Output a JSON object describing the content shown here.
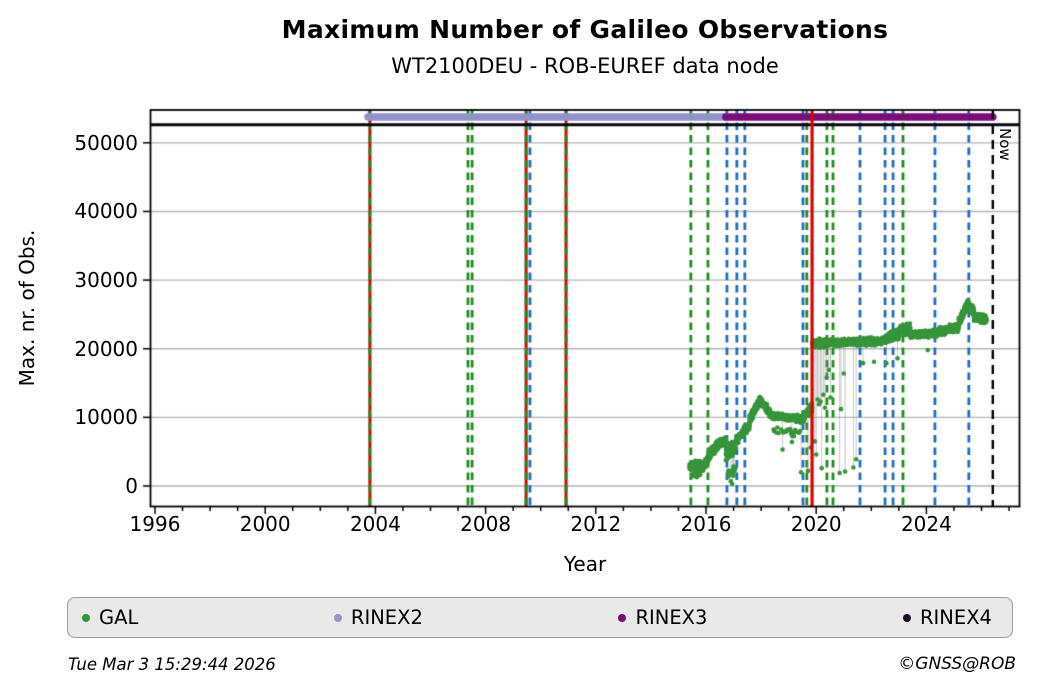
{
  "title": "Maximum Number of Galileo Observations",
  "subtitle": "WT2100DEU - ROB-EUREF data node",
  "footer": {
    "timestamp": "Tue Mar  3 15:29:44 2026",
    "credit": "©GNSS@ROB"
  },
  "legend": {
    "items": [
      {
        "id": "gal",
        "label": "GAL",
        "color": "#36943a"
      },
      {
        "id": "rinex2",
        "label": "RINEX2",
        "color": "#9393cb"
      },
      {
        "id": "rinex3",
        "label": "RINEX3",
        "color": "#790d79"
      },
      {
        "id": "rinex4",
        "label": "RINEX4",
        "color": "#1e0d28"
      }
    ]
  },
  "chart_data": {
    "type": "scatter",
    "title": "Maximum Number of Galileo Observations",
    "subtitle": "WT2100DEU - ROB-EUREF data node",
    "xlabel": "Year",
    "ylabel": "Max. nr. of Obs.",
    "xlim": [
      1995.84,
      2027.4
    ],
    "ylim": [
      -2915,
      54810
    ],
    "xticks": [
      1996,
      2000,
      2004,
      2008,
      2012,
      2016,
      2020,
      2024
    ],
    "xticks_minor_step": 1,
    "yticks": [
      0,
      10000,
      20000,
      30000,
      40000,
      50000
    ],
    "grid": "horizontal-only",
    "grid_color": "#b5b5b5",
    "legend_position": "bottom",
    "now": {
      "year": 2026.41,
      "label": "Now",
      "style": "black-dashed-vline"
    },
    "version_bars": [
      {
        "name": "RINEX2",
        "start": 2003.73,
        "end": 2016.72,
        "value": 53750,
        "color": "#9393cb"
      },
      {
        "name": "RINEX3",
        "start": 2016.72,
        "end": 2026.41,
        "value": 53750,
        "color": "#790d79"
      },
      {
        "name": "RINEX4",
        "start": 1995.84,
        "end": 2027.4,
        "value": 52650,
        "color": "#0a050e"
      }
    ],
    "event_lines": {
      "green_dashed_years": [
        2007.36,
        2007.51,
        2015.45,
        2016.07,
        2019.66,
        2020.39,
        2020.61,
        2023.15
      ],
      "blue_dashed_years": [
        2009.61,
        2016.76,
        2017.12,
        2017.41,
        2019.52,
        2021.59,
        2022.5,
        2022.79,
        2024.31,
        2025.54
      ],
      "red_green_years": [
        2003.8,
        2009.47,
        2010.92
      ],
      "red_solid_years": [
        2019.85
      ],
      "green_color": "#1e8c1e",
      "blue_color": "#1f6cc1",
      "red_color": "#dd0000"
    },
    "gal_series": {
      "name": "GAL",
      "color": "#36943a",
      "marker_radius": 2.3,
      "segments": [
        [
          2015.4,
          2015.78,
          2800,
          3300,
          750,
          120
        ],
        [
          2015.5,
          2015.72,
          1500,
          1800,
          500,
          25
        ],
        [
          2015.78,
          2016.08,
          2300,
          3900,
          950,
          80
        ],
        [
          2016.08,
          2016.48,
          4300,
          6300,
          950,
          130
        ],
        [
          2016.48,
          2016.72,
          6200,
          6600,
          800,
          75
        ],
        [
          2016.72,
          2017.08,
          5000,
          5500,
          1500,
          100
        ],
        [
          2016.8,
          2017.08,
          1700,
          2600,
          800,
          22
        ],
        [
          2017.08,
          2017.58,
          6600,
          8800,
          850,
          150
        ],
        [
          2017.58,
          2017.98,
          9600,
          12700,
          850,
          140
        ],
        [
          2017.98,
          2018.32,
          12400,
          10700,
          800,
          120
        ],
        [
          2018.32,
          2019.52,
          10300,
          9700,
          620,
          330
        ],
        [
          2018.45,
          2019.45,
          8100,
          7700,
          900,
          25
        ],
        [
          2019.52,
          2019.86,
          9900,
          11600,
          950,
          110
        ],
        [
          2019.86,
          2020.6,
          20700,
          20900,
          750,
          230
        ],
        [
          2020.6,
          2022.42,
          20900,
          21100,
          700,
          520
        ],
        [
          2022.42,
          2023.02,
          21200,
          22300,
          950,
          180
        ],
        [
          2023.02,
          2023.42,
          22700,
          22900,
          1000,
          140
        ],
        [
          2023.42,
          2024.42,
          22000,
          22300,
          700,
          290
        ],
        [
          2024.42,
          2025.17,
          22400,
          23200,
          750,
          220
        ],
        [
          2025.17,
          2025.48,
          23800,
          26300,
          900,
          110
        ],
        [
          2025.48,
          2025.72,
          26500,
          25300,
          950,
          90
        ],
        [
          2025.72,
          2026.18,
          24700,
          24200,
          800,
          140
        ]
      ],
      "outliers": [
        [
          2016.9,
          700
        ],
        [
          2016.95,
          300
        ],
        [
          2017.0,
          1500
        ],
        [
          2017.03,
          2300
        ],
        [
          2018.78,
          5300
        ],
        [
          2019.12,
          6400
        ],
        [
          2019.45,
          2000
        ],
        [
          2019.7,
          2200
        ],
        [
          2019.8,
          5600
        ],
        [
          2019.95,
          6500
        ],
        [
          2020.0,
          4600
        ],
        [
          2020.05,
          12600
        ],
        [
          2020.1,
          11900
        ],
        [
          2020.16,
          12300
        ],
        [
          2020.2,
          2600
        ],
        [
          2020.26,
          13300
        ],
        [
          2020.32,
          11400
        ],
        [
          2020.38,
          15800
        ],
        [
          2020.46,
          16900
        ],
        [
          2020.52,
          12900
        ],
        [
          2020.85,
          1900
        ],
        [
          2020.9,
          11200
        ],
        [
          2021.0,
          16400
        ],
        [
          2021.05,
          2100
        ],
        [
          2021.35,
          2700
        ],
        [
          2021.45,
          3900
        ],
        [
          2021.7,
          17900
        ],
        [
          2022.1,
          18100
        ],
        [
          2022.55,
          17900
        ],
        [
          2022.95,
          18600
        ],
        [
          2024.05,
          19800
        ]
      ]
    }
  }
}
